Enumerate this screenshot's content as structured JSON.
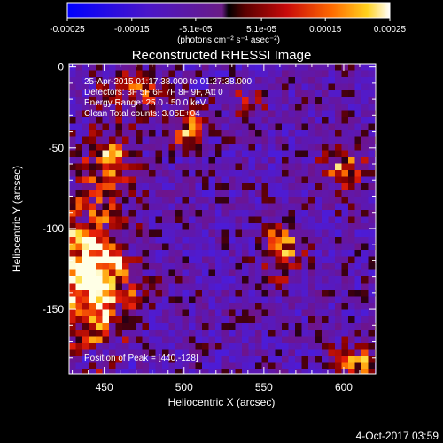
{
  "colorbar": {
    "tick_labels": [
      "-0.00025",
      "-0.00015",
      "-5.1e-05",
      "5.1e-05",
      "0.00015",
      "0.00025"
    ],
    "tick_values": [
      -0.00025,
      -0.00015,
      -5.1e-05,
      5.1e-05,
      0.00015,
      0.00025
    ],
    "range": [
      -0.00025,
      0.00025
    ],
    "unit_label": "(photons cm⁻² s⁻¹ asec⁻²)"
  },
  "chart_data": {
    "type": "heatmap",
    "title": "Reconstructed RHESSI Image",
    "xlabel": "Heliocentric X (arcsec)",
    "ylabel": "Heliocentric Y (arcsec)",
    "xlim": [
      428,
      620
    ],
    "ylim": [
      -190,
      2
    ],
    "x_ticks": [
      450,
      500,
      550,
      600
    ],
    "y_ticks": [
      0,
      -50,
      -100,
      -150
    ],
    "annotations": [
      "25-Apr-2015 01:17:38.000 to 01:27:38.000",
      "Detectors: 3F 5F 6F 7F 8F 9F, Att 0",
      "Energy Range: 25.0 - 50.0 keV",
      "Clean   Total counts: 3.05E+04"
    ],
    "peak_label": "Position of Peak = [440,-128]",
    "peak": [
      440,
      -128
    ],
    "bright_regions": [
      {
        "x": 442,
        "y": -128,
        "sx": 16,
        "sy": 26,
        "amp": 1.0
      },
      {
        "x": 452,
        "y": -60,
        "sx": 10,
        "sy": 14,
        "amp": 0.6
      },
      {
        "x": 470,
        "y": -15,
        "sx": 14,
        "sy": 9,
        "amp": 0.45
      },
      {
        "x": 502,
        "y": -38,
        "sx": 8,
        "sy": 8,
        "amp": 0.55
      },
      {
        "x": 562,
        "y": -112,
        "sx": 8,
        "sy": 14,
        "amp": 0.55
      },
      {
        "x": 600,
        "y": -62,
        "sx": 9,
        "sy": 12,
        "amp": 0.5
      },
      {
        "x": 606,
        "y": -183,
        "sx": 10,
        "sy": 8,
        "amp": 0.6
      },
      {
        "x": 540,
        "y": -22,
        "sx": 10,
        "sy": 8,
        "amp": 0.3
      }
    ]
  },
  "footer_timestamp": "4-Oct-2017 03:59"
}
